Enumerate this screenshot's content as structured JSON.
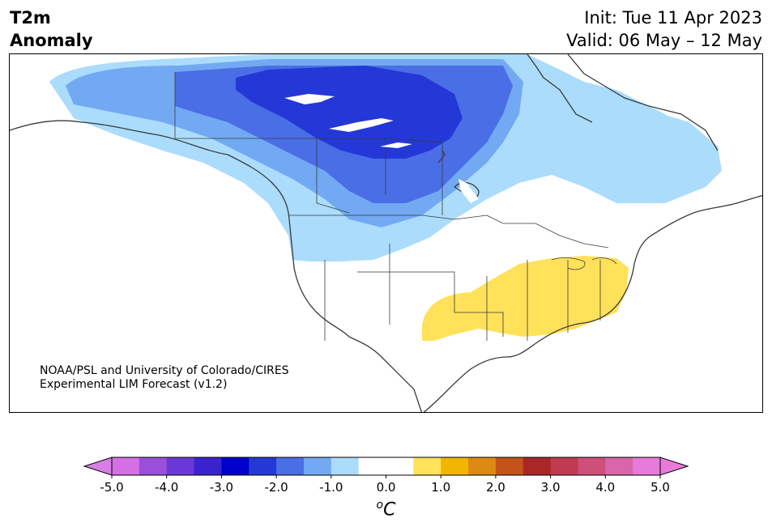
{
  "title": {
    "line1": "T2m",
    "line2": "Anomaly"
  },
  "dates": {
    "init": "Init: Tue 11 Apr 2023",
    "valid": "Valid: 06 May – 12 May"
  },
  "credit": {
    "line1": "NOAA/PSL and University of Colorado/CIRES",
    "line2": "Experimental LIM Forecast (v1.2)"
  },
  "colorbar": {
    "units_sup": "o",
    "units_base": "C",
    "ticks": [
      "-5.0",
      "-4.0",
      "-3.0",
      "-2.0",
      "-1.0",
      "0.0",
      "1.0",
      "2.0",
      "3.0",
      "4.0",
      "5.0"
    ],
    "under_color": "#d97ee6",
    "over_color": "#e87ad9",
    "colors": [
      "#d56fe4",
      "#9a4fdb",
      "#6a38d8",
      "#3b22cf",
      "#0000cd",
      "#2438d8",
      "#4a6ee6",
      "#72a9f2",
      "#abdcfc",
      "#ffffff",
      "#ffffff",
      "#ffe15a",
      "#f2b600",
      "#dd8a12",
      "#c4531a",
      "#ab2626",
      "#c03a52",
      "#cf4f7a",
      "#d965aa",
      "#e87ad9"
    ]
  }
}
